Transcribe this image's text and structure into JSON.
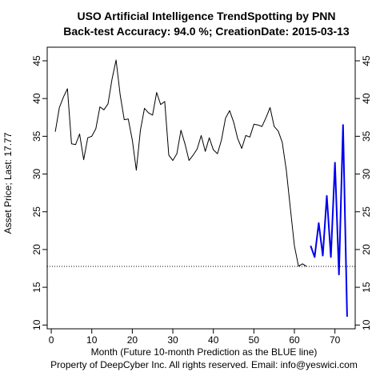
{
  "chart_data": {
    "type": "line",
    "title": "USO  Artificial Intelligence TrendSpotting by PNN",
    "subtitle": "Back-test Accuracy: 94.0 %; CreationDate: 2015-03-13",
    "xlabel": "Month (Future 10-month Prediction as the BLUE line)",
    "ylabel": "Asset Price; Last: 17.77",
    "footer": "Property of DeepCyber Inc. All rights reserved. Email: info@yeswici.com",
    "xlim": [
      -1,
      75
    ],
    "ylim": [
      9.5,
      46.8
    ],
    "x_ticks": [
      0,
      10,
      20,
      30,
      40,
      50,
      60,
      70
    ],
    "y_ticks": [
      10,
      15,
      20,
      25,
      30,
      35,
      40,
      45
    ],
    "reference_line": {
      "y": 17.77,
      "style": "dotted",
      "color": "#000000"
    },
    "series": [
      {
        "color": "#000000",
        "x": [
          1,
          2,
          3,
          4,
          5,
          6,
          7,
          8,
          9,
          10,
          11,
          12,
          13,
          14,
          15,
          16,
          17,
          18,
          19,
          20,
          21,
          22,
          23,
          24,
          25,
          26,
          27,
          28,
          29,
          30,
          31,
          32,
          33,
          34,
          35,
          36,
          37,
          38,
          39,
          40,
          41,
          42,
          43,
          44,
          45,
          46,
          47,
          48,
          49,
          50,
          51,
          52,
          53,
          54,
          55,
          56,
          57,
          58,
          59,
          60,
          61,
          62,
          63
        ],
        "y": [
          35.6,
          38.8,
          40.2,
          41.3,
          34.0,
          33.9,
          35.3,
          31.9,
          34.8,
          35.0,
          36.0,
          38.9,
          38.5,
          39.3,
          42.6,
          45.1,
          40.5,
          37.2,
          37.3,
          34.5,
          30.5,
          35.8,
          38.7,
          38.1,
          37.8,
          40.8,
          39.2,
          39.6,
          32.5,
          31.8,
          32.7,
          35.8,
          34.0,
          31.8,
          32.5,
          33.3,
          35.1,
          33.0,
          34.8,
          33.2,
          32.7,
          34.5,
          37.4,
          38.4,
          36.9,
          34.7,
          33.4,
          35.1,
          34.9,
          36.6,
          36.5,
          36.3,
          37.5,
          38.8,
          36.3,
          35.7,
          34.2,
          30.5,
          25.5,
          20.5,
          17.8,
          18.1,
          17.77
        ]
      },
      {
        "color": "#0000ee",
        "x": [
          64,
          65,
          66,
          67,
          68,
          69,
          70,
          71,
          72,
          73
        ],
        "y": [
          20.5,
          19.0,
          23.5,
          19.2,
          27.1,
          19.0,
          31.5,
          16.7,
          36.5,
          11.1
        ]
      }
    ],
    "colors": {
      "history": "#000000",
      "prediction": "#0000ee",
      "axis": "#000000"
    }
  }
}
